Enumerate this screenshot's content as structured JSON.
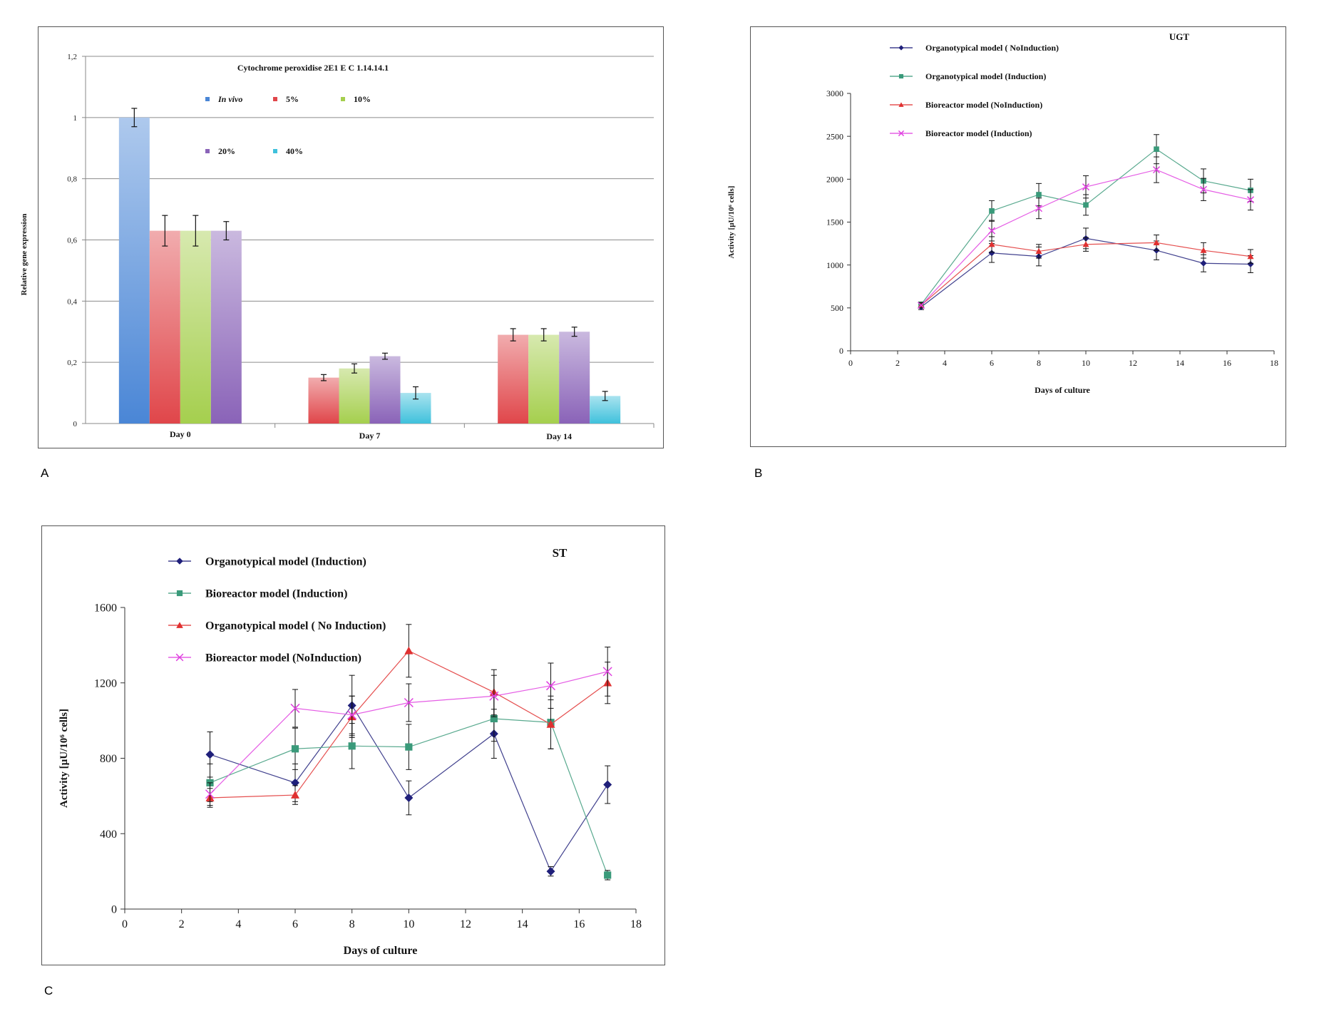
{
  "panel_labels": {
    "a": "A",
    "b": "B",
    "c": "C"
  },
  "chart_data": [
    {
      "type": "bar",
      "title": "Cytochrome peroxidise 2E1 E C 1.14.14.1",
      "ylabel": "Relative gene expression",
      "xlabel": "",
      "ylim": [
        0,
        1.2
      ],
      "yticks": [
        "0",
        "0,2",
        "0,4",
        "0,6",
        "0,8",
        "1",
        "1,2"
      ],
      "ytick_values": [
        0,
        0.2,
        0.4,
        0.6,
        0.8,
        1,
        1.2
      ],
      "categories": [
        "Day 0",
        "Day 7",
        "Day 14"
      ],
      "grid": true,
      "legend_position": "top",
      "series": [
        {
          "name": "In vivo",
          "color": "#4a86d6",
          "values": [
            1.0,
            null,
            null
          ],
          "errors": [
            0.03,
            null,
            null
          ]
        },
        {
          "name": "5%",
          "color": "#e0464a",
          "values": [
            0.63,
            0.15,
            0.29
          ],
          "errors": [
            0.05,
            0.01,
            0.02
          ]
        },
        {
          "name": "10%",
          "color": "#a5cf4e",
          "values": [
            0.63,
            0.18,
            0.29
          ],
          "errors": [
            0.05,
            0.015,
            0.02
          ]
        },
        {
          "name": "20%",
          "color": "#8a63b8",
          "values": [
            0.63,
            0.22,
            0.3
          ],
          "errors": [
            0.03,
            0.01,
            0.015
          ]
        },
        {
          "name": "40%",
          "color": "#3fc1dc",
          "values": [
            null,
            0.1,
            0.09
          ],
          "errors": [
            null,
            0.02,
            0.015
          ]
        }
      ]
    },
    {
      "type": "line",
      "title": "UGT",
      "xlabel": "Days of culture",
      "ylabel": "Activity [µU/10⁶ cells]",
      "xlim": [
        0,
        18
      ],
      "ylim": [
        0,
        3000
      ],
      "xticks": [
        0,
        2,
        4,
        6,
        8,
        10,
        12,
        14,
        16,
        18
      ],
      "yticks": [
        0,
        500,
        1000,
        1500,
        2000,
        2500,
        3000
      ],
      "grid": false,
      "legend_position": "top-left",
      "x": [
        3,
        6,
        8,
        10,
        13,
        15,
        17
      ],
      "series": [
        {
          "name": "Organotypical model ( NoInduction)",
          "color": "#1f1f7a",
          "marker": "diamond",
          "values": [
            510,
            1140,
            1100,
            1310,
            1170,
            1020,
            1010
          ],
          "errors": [
            30,
            110,
            110,
            120,
            110,
            100,
            100
          ]
        },
        {
          "name": "Organotypical model (Induction)",
          "color": "#3a9a7a",
          "marker": "square",
          "values": [
            540,
            1630,
            1820,
            1700,
            2350,
            1980,
            1870
          ],
          "errors": [
            30,
            120,
            130,
            120,
            170,
            140,
            130
          ]
        },
        {
          "name": "Bioreactor model (NoInduction)",
          "color": "#e03030",
          "marker": "triangle",
          "values": [
            530,
            1240,
            1160,
            1240,
            1260,
            1170,
            1100
          ],
          "errors": [
            30,
            90,
            80,
            80,
            90,
            90,
            80
          ]
        },
        {
          "name": "Bioreactor model (Induction)",
          "color": "#e040e0",
          "marker": "x",
          "values": [
            530,
            1400,
            1660,
            1910,
            2110,
            1880,
            1760
          ],
          "errors": [
            30,
            120,
            120,
            130,
            150,
            130,
            120
          ]
        }
      ]
    },
    {
      "type": "line",
      "title": "ST",
      "xlabel": "Days of culture",
      "ylabel": "Activity [µU/10⁶ cells]",
      "xlim": [
        0,
        18
      ],
      "ylim": [
        0,
        1600
      ],
      "xticks": [
        0,
        2,
        4,
        6,
        8,
        10,
        12,
        14,
        16,
        18
      ],
      "yticks": [
        0,
        400,
        800,
        1200,
        1600
      ],
      "grid": false,
      "legend_position": "top-left",
      "x": [
        3,
        6,
        8,
        10,
        13,
        15,
        17
      ],
      "series": [
        {
          "name": "Organotypical model (Induction)",
          "color": "#1f1f7a",
          "marker": "diamond",
          "values": [
            820,
            670,
            1080,
            590,
            930,
            200,
            660
          ],
          "errors": [
            120,
            100,
            160,
            90,
            130,
            25,
            100
          ]
        },
        {
          "name": "Bioreactor model (Induction)",
          "color": "#3a9a7a",
          "marker": "square",
          "values": [
            670,
            850,
            865,
            860,
            1010,
            990,
            180
          ],
          "errors": [
            100,
            110,
            120,
            120,
            120,
            140,
            25
          ]
        },
        {
          "name": "Organotypical model ( No Induction)",
          "color": "#e03030",
          "marker": "triangle",
          "values": [
            590,
            605,
            1020,
            1370,
            1150,
            980,
            1200
          ],
          "errors": [
            50,
            50,
            110,
            140,
            120,
            130,
            110
          ]
        },
        {
          "name": "Bioreactor model (NoInduction)",
          "color": "#e040e0",
          "marker": "x",
          "values": [
            610,
            1065,
            1030,
            1095,
            1130,
            1185,
            1260
          ],
          "errors": [
            60,
            100,
            100,
            100,
            110,
            120,
            130
          ]
        }
      ]
    }
  ]
}
